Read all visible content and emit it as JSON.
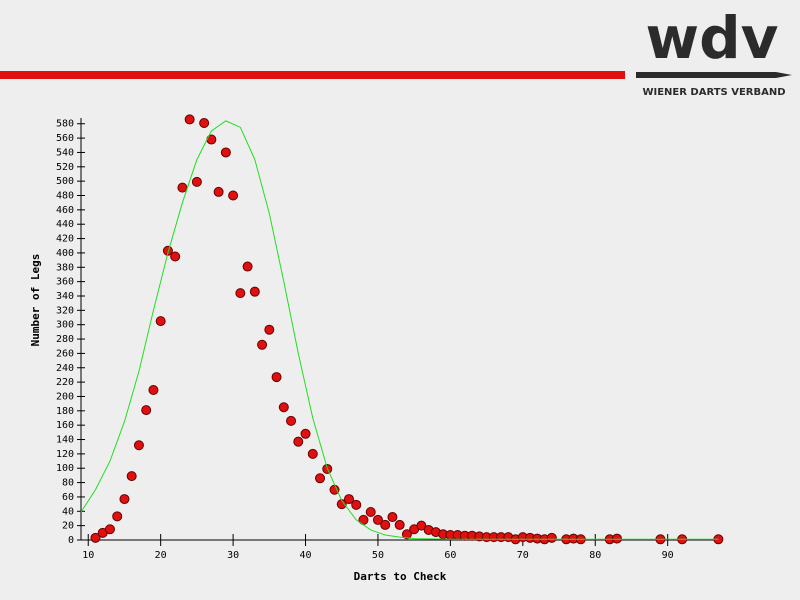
{
  "logo": {
    "mark": "wdv",
    "name": "WIENER DARTS VERBAND"
  },
  "chart_data": {
    "type": "scatter",
    "xlabel": "Darts to Check",
    "ylabel": "Number of Legs",
    "xlim": [
      9,
      97.5
    ],
    "ylim": [
      0,
      588
    ],
    "xticks": [
      10,
      20,
      30,
      40,
      50,
      60,
      70,
      80,
      90
    ],
    "yticks": [
      0,
      20,
      40,
      60,
      80,
      100,
      120,
      140,
      160,
      180,
      200,
      220,
      240,
      260,
      280,
      300,
      320,
      340,
      360,
      380,
      400,
      420,
      440,
      460,
      480,
      500,
      520,
      540,
      560,
      580
    ],
    "series": [
      {
        "type": "scatter",
        "color": "#e01010",
        "x": [
          11,
          12,
          13,
          14,
          15,
          16,
          17,
          18,
          19,
          20,
          21,
          22,
          23,
          24,
          25,
          26,
          27,
          28,
          29,
          30,
          31,
          32,
          33,
          34,
          35,
          36,
          37,
          38,
          39,
          40,
          41,
          42,
          43,
          44,
          45,
          46,
          47,
          48,
          49,
          50,
          51,
          52,
          53,
          54,
          55,
          56,
          57,
          58,
          59,
          60,
          61,
          62,
          63,
          64,
          65,
          66,
          67,
          68,
          69,
          70,
          71,
          72,
          73,
          74,
          76,
          77,
          78,
          82,
          83,
          89,
          92,
          97
        ],
        "values": [
          3,
          10,
          15,
          33,
          57,
          89,
          132,
          181,
          209,
          305,
          403,
          395,
          491,
          586,
          499,
          581,
          558,
          485,
          540,
          480,
          344,
          381,
          346,
          272,
          293,
          227,
          185,
          166,
          137,
          148,
          120,
          86,
          99,
          70,
          50,
          57,
          49,
          28,
          39,
          28,
          21,
          32,
          21,
          8,
          15,
          20,
          14,
          11,
          8,
          7,
          7,
          6,
          6,
          5,
          4,
          4,
          4,
          4,
          1,
          4,
          3,
          2,
          1,
          3,
          1,
          2,
          1,
          1,
          2,
          1,
          1,
          1
        ]
      },
      {
        "type": "line",
        "color": "#22dd22",
        "x": [
          9,
          11,
          13,
          15,
          17,
          19,
          21,
          23,
          25,
          27,
          29,
          31,
          33,
          35,
          37,
          39,
          41,
          43,
          45,
          47,
          49,
          51,
          53,
          55,
          60,
          70,
          97
        ],
        "values": [
          39,
          70,
          110,
          165,
          235,
          320,
          400,
          470,
          530,
          570,
          584,
          575,
          530,
          455,
          360,
          260,
          170,
          100,
          55,
          28,
          14,
          7,
          4,
          2,
          1,
          1,
          1
        ]
      }
    ]
  }
}
